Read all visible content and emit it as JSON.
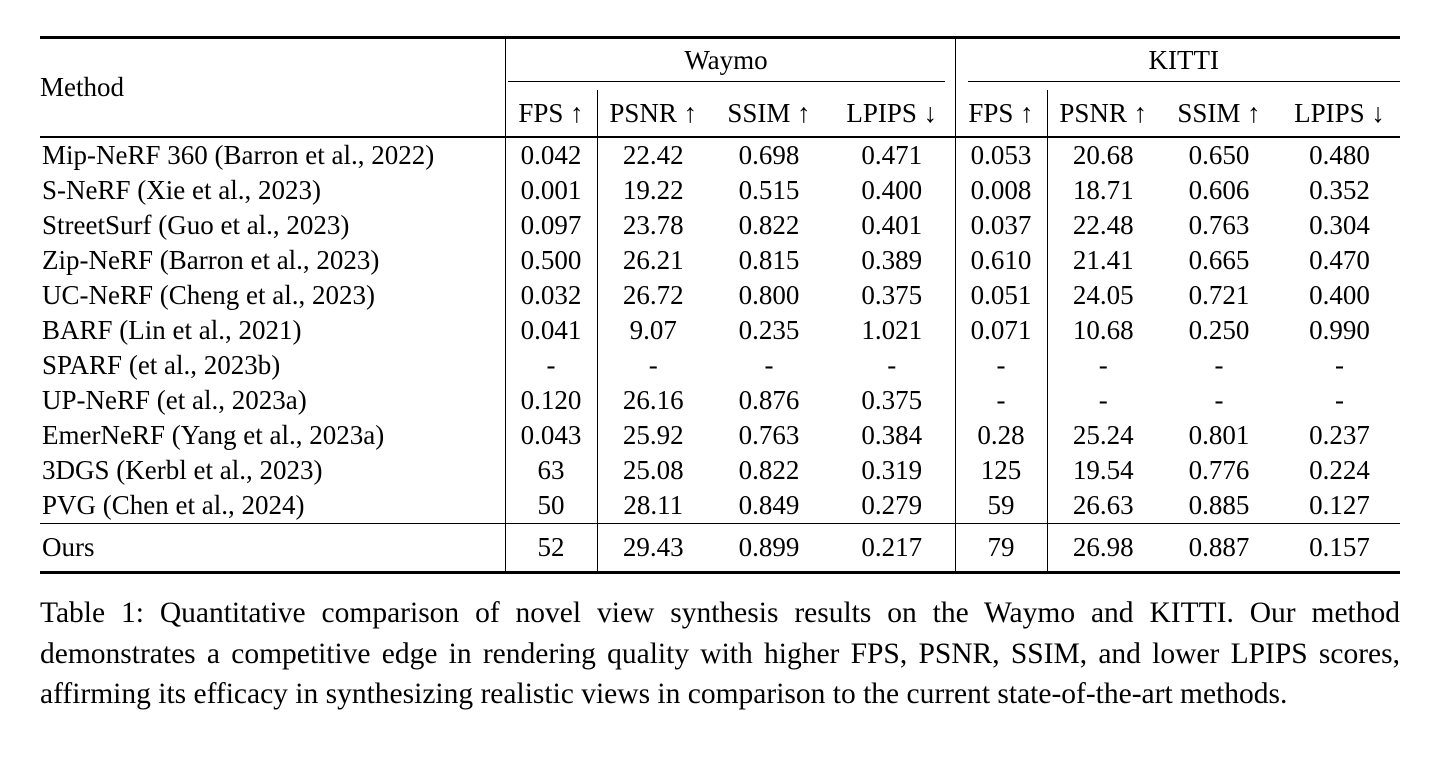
{
  "table": {
    "method_header": "Method",
    "groups": [
      "Waymo",
      "KITTI"
    ],
    "metrics": [
      "FPS ↑",
      "PSNR ↑",
      "SSIM ↑",
      "LPIPS ↓"
    ],
    "rows": [
      {
        "method": "Mip-NeRF 360 (Barron et al., 2022)",
        "values": [
          "0.042",
          "22.42",
          "0.698",
          "0.471",
          "0.053",
          "20.68",
          "0.650",
          "0.480"
        ],
        "bold": []
      },
      {
        "method": "S-NeRF (Xie et al., 2023)",
        "values": [
          "0.001",
          "19.22",
          "0.515",
          "0.400",
          "0.008",
          "18.71",
          "0.606",
          "0.352"
        ],
        "bold": []
      },
      {
        "method": "StreetSurf (Guo et al., 2023)",
        "values": [
          "0.097",
          "23.78",
          "0.822",
          "0.401",
          "0.037",
          "22.48",
          "0.763",
          "0.304"
        ],
        "bold": []
      },
      {
        "method": "Zip-NeRF (Barron et al., 2023)",
        "values": [
          "0.500",
          "26.21",
          "0.815",
          "0.389",
          "0.610",
          "21.41",
          "0.665",
          "0.470"
        ],
        "bold": []
      },
      {
        "method": "UC-NeRF (Cheng et al., 2023)",
        "values": [
          "0.032",
          "26.72",
          "0.800",
          "0.375",
          "0.051",
          "24.05",
          "0.721",
          "0.400"
        ],
        "bold": []
      },
      {
        "method": "BARF (Lin et al., 2021)",
        "values": [
          "0.041",
          "9.07",
          "0.235",
          "1.021",
          "0.071",
          "10.68",
          "0.250",
          "0.990"
        ],
        "bold": []
      },
      {
        "method": "SPARF (et al., 2023b)",
        "values": [
          "-",
          "-",
          "-",
          "-",
          "-",
          "-",
          "-",
          "-"
        ],
        "bold": []
      },
      {
        "method": "UP-NeRF (et al., 2023a)",
        "values": [
          "0.120",
          "26.16",
          "0.876",
          "0.375",
          "-",
          "-",
          "-",
          "-"
        ],
        "bold": []
      },
      {
        "method": "EmerNeRF (Yang et al., 2023a)",
        "values": [
          "0.043",
          "25.92",
          "0.763",
          "0.384",
          "0.28",
          "25.24",
          "0.801",
          "0.237"
        ],
        "bold": []
      },
      {
        "method": "3DGS (Kerbl et al., 2023)",
        "values": [
          "63",
          "25.08",
          "0.822",
          "0.319",
          "125",
          "19.54",
          "0.776",
          "0.224"
        ],
        "bold": [
          0,
          4
        ]
      },
      {
        "method": "PVG (Chen et al., 2024)",
        "values": [
          "50",
          "28.11",
          "0.849",
          "0.279",
          "59",
          "26.63",
          "0.885",
          "0.127"
        ],
        "bold": [
          7
        ]
      }
    ],
    "ours_row": {
      "method": "Ours",
      "values": [
        "52",
        "29.43",
        "0.899",
        "0.217",
        "79",
        "26.98",
        "0.887",
        "0.157"
      ],
      "bold": [
        1,
        2,
        3,
        5,
        6
      ]
    }
  },
  "caption": "Table 1: Quantitative comparison of novel view synthesis results on the Waymo and KITTI. Our method demonstrates a competitive edge in rendering quality with higher FPS, PSNR, SSIM, and lower LPIPS scores, affirming its efficacy in synthesizing realistic views in comparison to the current state-of-the-art methods."
}
